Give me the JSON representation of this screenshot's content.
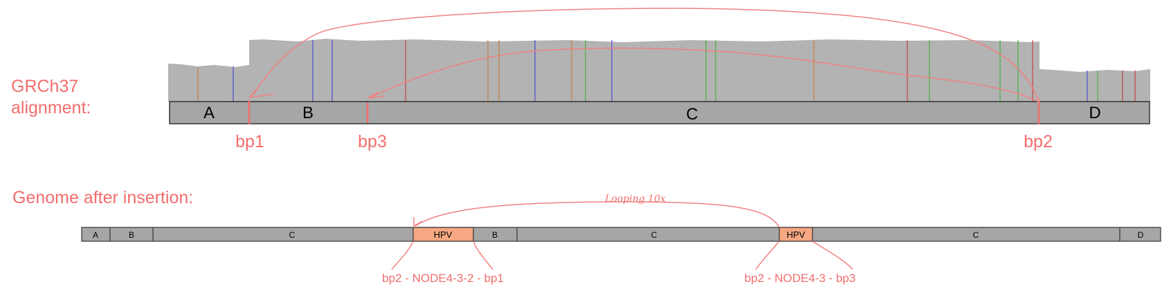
{
  "labels": {
    "alignment_line1": "GRCh37",
    "alignment_line2": "alignment:",
    "genome_after": "Genome after insertion:"
  },
  "top_segments": [
    "A",
    "B",
    "C",
    "D"
  ],
  "breakpoints": [
    "bp1",
    "bp3",
    "bp2"
  ],
  "bottom_segments": [
    "A",
    "B",
    "C",
    "HPV",
    "B",
    "C",
    "HPV",
    "C",
    "D"
  ],
  "junctions": {
    "left": "bp2 - NODE4-3-2 - bp1",
    "right": "bp2 - NODE4-3 - bp3"
  },
  "loop_label": "Looping 10x",
  "colors": {
    "annotation": "#f26d6d",
    "coverage": "#b3b3b3",
    "bar": "#a6a6a6",
    "hpv": "#f6a882"
  }
}
